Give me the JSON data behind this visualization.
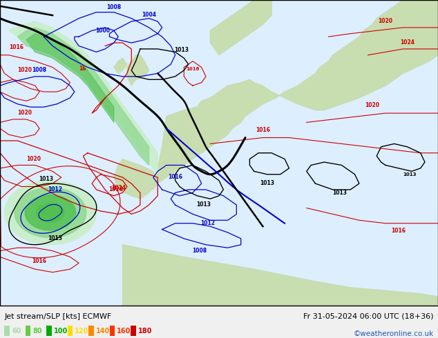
{
  "title_left": "Jet stream/SLP [kts] ECMWF",
  "title_right": "Fr 31-05-2024 06:00 UTC (18+36)",
  "watermark": "©weatheronline.co.uk",
  "legend_values": [
    "60",
    "80",
    "100",
    "120",
    "140",
    "160",
    "180"
  ],
  "legend_colors": [
    "#aaddaa",
    "#66cc44",
    "#00aa00",
    "#ffdd00",
    "#ff8800",
    "#ff3300",
    "#cc0000"
  ],
  "bg_color": "#f0f0f0",
  "sea_color": "#ddeeff",
  "land_color": "#c8ddb0",
  "land_color2": "#b8d4a0",
  "jet_green1": "#c8eec8",
  "jet_green2": "#90d890",
  "jet_green3": "#50c050",
  "isobar_blue": "#0000cc",
  "isobar_red": "#cc0000",
  "isobar_black": "#000000",
  "bottom_bg": "#f0f0f0",
  "watermark_color": "#2255bb",
  "fig_width": 6.34,
  "fig_height": 4.9,
  "dpi": 100
}
